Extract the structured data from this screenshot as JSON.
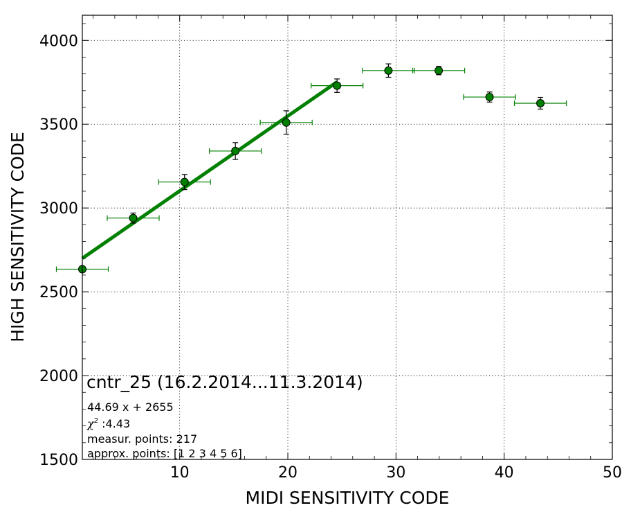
{
  "chart_data": {
    "type": "scatter",
    "xlabel": "MIDI SENSITIVITY CODE",
    "ylabel": "HIGH SENSITIVITY CODE",
    "xlim": [
      1,
      50
    ],
    "ylim": [
      1500,
      4150
    ],
    "x_ticks": [
      10,
      20,
      30,
      40,
      50
    ],
    "y_ticks": [
      1500,
      2000,
      2500,
      3000,
      3500,
      4000
    ],
    "x_tick_labels": [
      "10",
      "20",
      "30",
      "40",
      "50"
    ],
    "y_tick_labels": [
      "1500",
      "2000",
      "2500",
      "3000",
      "3500",
      "4000"
    ],
    "grid": true,
    "color": "#008000",
    "points": [
      {
        "x": 1.0,
        "y": 2635,
        "xerr": 2.4,
        "yerr": 0
      },
      {
        "x": 5.7,
        "y": 2940,
        "xerr": 2.4,
        "yerr": 30
      },
      {
        "x": 10.45,
        "y": 3155,
        "xerr": 2.4,
        "yerr": 45
      },
      {
        "x": 15.15,
        "y": 3340,
        "xerr": 2.4,
        "yerr": 50
      },
      {
        "x": 19.85,
        "y": 3510,
        "xerr": 2.4,
        "yerr": 70
      },
      {
        "x": 24.55,
        "y": 3730,
        "xerr": 2.4,
        "yerr": 40
      },
      {
        "x": 29.3,
        "y": 3820,
        "xerr": 2.4,
        "yerr": 40
      },
      {
        "x": 33.95,
        "y": 3820,
        "xerr": 2.4,
        "yerr": 25
      },
      {
        "x": 38.65,
        "y": 3662,
        "xerr": 2.4,
        "yerr": 30
      },
      {
        "x": 43.35,
        "y": 3625,
        "xerr": 2.4,
        "yerr": 35
      }
    ],
    "fit": {
      "slope": 44.69,
      "intercept": 2655,
      "x_range": [
        1.0,
        24.55
      ]
    },
    "annotations": {
      "title": "cntr_25 (16.2.2014...11.3.2014)",
      "equation": "44.69 x + 2655",
      "chi_symbol": "χ",
      "chi_sup": "2",
      "chi_value": " :4.43",
      "measur_points": "measur. points: 217",
      "approx_points": "approx. points: [1 2 3 4 5 6]"
    }
  }
}
